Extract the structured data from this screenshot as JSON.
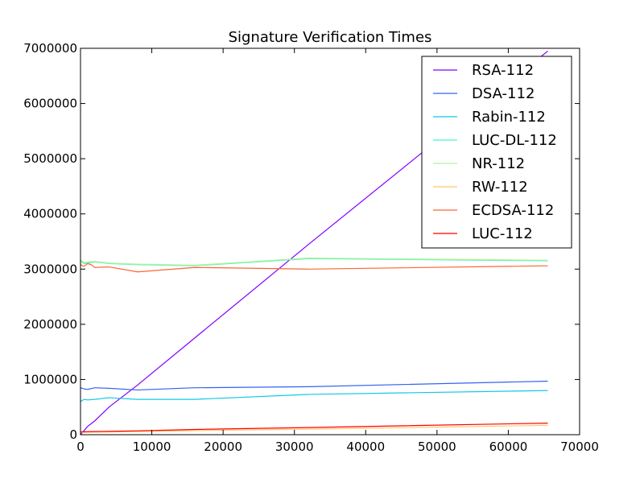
{
  "chart_data": {
    "type": "line",
    "title": "Signature Verification Times",
    "xlabel": "",
    "ylabel": "",
    "xlim": [
      0,
      70000
    ],
    "ylim": [
      0,
      7000000
    ],
    "xticks": [
      0,
      10000,
      20000,
      30000,
      40000,
      50000,
      60000,
      70000
    ],
    "yticks": [
      0,
      1000000,
      2000000,
      3000000,
      4000000,
      5000000,
      6000000,
      7000000
    ],
    "grid": false,
    "legend_position": "top-right",
    "series": [
      {
        "name": "RSA-112",
        "color": "#8000ff",
        "x": [
          0,
          1000,
          2000,
          4000,
          8000,
          16000,
          32000,
          65536
        ],
        "y": [
          0,
          150000,
          250000,
          500000,
          900000,
          1750000,
          3450000,
          6950000
        ]
      },
      {
        "name": "DSA-112",
        "color": "#3263f4",
        "x": [
          0,
          500,
          1000,
          2000,
          4000,
          8000,
          16000,
          32000,
          65536
        ],
        "y": [
          850000,
          830000,
          820000,
          850000,
          840000,
          810000,
          850000,
          870000,
          970000
        ]
      },
      {
        "name": "Rabin-112",
        "color": "#12c8e6",
        "x": [
          0,
          500,
          1000,
          2000,
          4000,
          8000,
          16000,
          32000,
          65536
        ],
        "y": [
          600000,
          640000,
          630000,
          640000,
          670000,
          640000,
          640000,
          730000,
          800000
        ]
      },
      {
        "name": "LUC-DL-112",
        "color": "#4cf2cd",
        "x": [
          0,
          500,
          1000,
          2000,
          4000,
          8000,
          16000,
          32000,
          65536
        ],
        "y": [
          3150000,
          3100000,
          3110000,
          3130000,
          3100000,
          3080000,
          3060000,
          3190000,
          3150000
        ]
      },
      {
        "name": "NR-112",
        "color": "#b2f396",
        "x": [
          0,
          500,
          1000,
          2000,
          4000,
          8000,
          16000,
          32000,
          65536
        ],
        "y": [
          3170000,
          3120000,
          3130000,
          3140000,
          3110000,
          3090000,
          3070000,
          3200000,
          3160000
        ]
      },
      {
        "name": "RW-112",
        "color": "#ffc86f",
        "x": [
          0,
          1000,
          2000,
          4000,
          8000,
          16000,
          32000,
          65536
        ],
        "y": [
          40000,
          45000,
          45000,
          50000,
          55000,
          75000,
          100000,
          170000
        ]
      },
      {
        "name": "ECDSA-112",
        "color": "#ff6432",
        "x": [
          0,
          500,
          1000,
          1500,
          2000,
          4000,
          8000,
          16000,
          32000,
          65536
        ],
        "y": [
          3080000,
          3050000,
          3100000,
          3080000,
          3030000,
          3040000,
          2950000,
          3030000,
          3000000,
          3060000
        ]
      },
      {
        "name": "LUC-112",
        "color": "#ff0000",
        "x": [
          0,
          1000,
          2000,
          4000,
          8000,
          16000,
          32000,
          65536
        ],
        "y": [
          50000,
          55000,
          58000,
          60000,
          70000,
          95000,
          130000,
          210000
        ]
      }
    ]
  }
}
